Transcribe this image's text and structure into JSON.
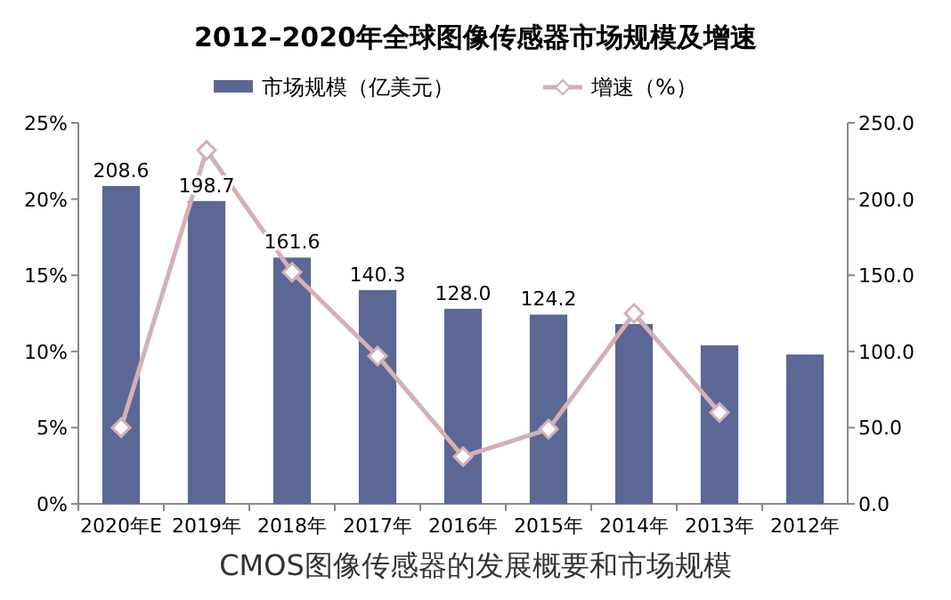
{
  "chart_data": {
    "type": "bar",
    "title": "2012–2020年全球图像传感器市场规模及增速",
    "annotations": [
      "CMOS图像传感器的发展概要和市场规模"
    ],
    "categories": [
      "2020年E",
      "2019年",
      "2018年",
      "2017年",
      "2016年",
      "2015年",
      "2014年",
      "2013年",
      "2012年"
    ],
    "series": [
      {
        "name": "市场规模（亿美元）",
        "axis": "y2",
        "color": "#5b6896",
        "values": [
          208.6,
          198.7,
          161.6,
          140.3,
          128.0,
          124.2,
          118,
          104,
          98
        ],
        "value_labels": [
          "208.6",
          "198.7",
          "161.6",
          "140.3",
          "128.0",
          "124.2",
          null,
          null,
          null
        ]
      },
      {
        "name": "增速（%）",
        "type": "line",
        "axis": "y",
        "color": "#d4b0b6",
        "marker": "diamond",
        "values": [
          5.0,
          23.2,
          15.2,
          9.7,
          3.1,
          4.9,
          12.5,
          6.0,
          null
        ]
      }
    ],
    "ylim": [
      0,
      25
    ],
    "yticks": [
      {
        "value": 0,
        "label": "0%"
      },
      {
        "value": 5,
        "label": "5%"
      },
      {
        "value": 10,
        "label": "10%"
      },
      {
        "value": 15,
        "label": "15%"
      },
      {
        "value": 20,
        "label": "20%"
      },
      {
        "value": 25,
        "label": "25%"
      }
    ],
    "y2lim": [
      0,
      250
    ],
    "y2ticks": [
      {
        "value": 0,
        "label": "0.0"
      },
      {
        "value": 50,
        "label": "50.0"
      },
      {
        "value": 100,
        "label": "100.0"
      },
      {
        "value": 150,
        "label": "150.0"
      },
      {
        "value": 200,
        "label": "200.0"
      },
      {
        "value": 250,
        "label": "250.0"
      }
    ],
    "legend": "top",
    "grid": false
  }
}
